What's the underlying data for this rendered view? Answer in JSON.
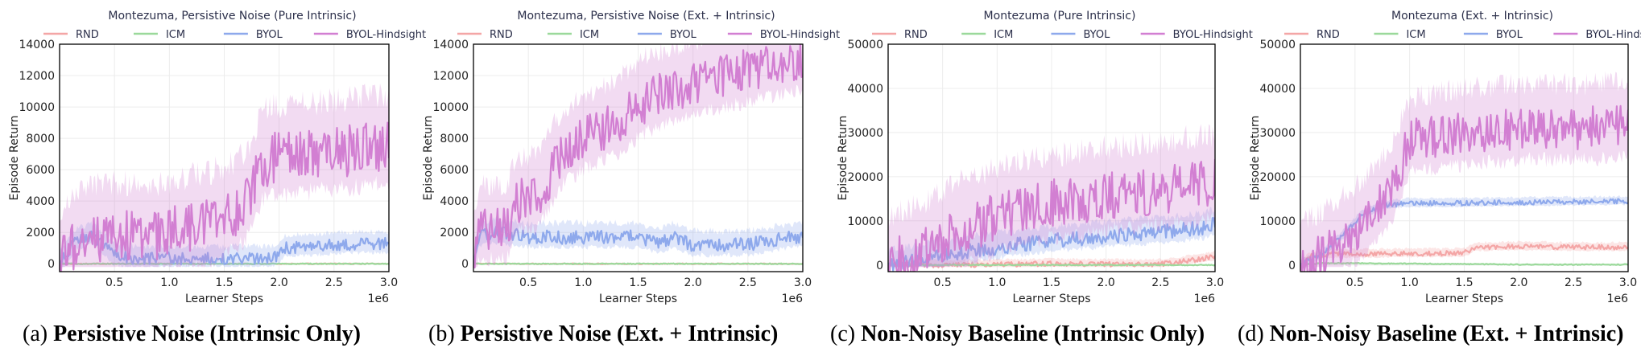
{
  "chart_data": [
    {
      "type": "line",
      "title": "Montezuma, Persistive Noise (Pure Intrinsic)",
      "xlabel": "Learner Steps",
      "ylabel": "Episode Return",
      "x_multiplier": "1e6",
      "xlim": [
        0,
        3.0
      ],
      "ylim": [
        -500,
        14000
      ],
      "x_ticks": [
        "0.5",
        "1.0",
        "1.5",
        "2.0",
        "2.5",
        "3.0"
      ],
      "y_ticks": [
        "0",
        "2000",
        "4000",
        "6000",
        "8000",
        "10000",
        "12000",
        "14000"
      ],
      "legend": "top",
      "grid": true,
      "caption_prefix": "(a)",
      "caption_bold": "Persistive Noise (Intrinsic Only)",
      "series": [
        {
          "name": "RND",
          "color": "#f4a6a6",
          "x": [
            0,
            0.5,
            1.0,
            1.5,
            2.0,
            2.5,
            3.0
          ],
          "values": [
            0,
            0,
            0,
            0,
            0,
            0,
            0
          ],
          "band": 0
        },
        {
          "name": "ICM",
          "color": "#9bd99b",
          "x": [
            0,
            0.5,
            1.0,
            1.5,
            2.0,
            2.5,
            3.0
          ],
          "values": [
            0,
            0,
            0,
            0,
            0,
            0,
            0
          ],
          "band": 0
        },
        {
          "name": "BYOL",
          "color": "#8ea9ec",
          "x": [
            0,
            0.15,
            0.3,
            0.5,
            0.7,
            1.0,
            1.5,
            1.95,
            2.05,
            2.5,
            3.0
          ],
          "values": [
            0,
            1500,
            1800,
            500,
            350,
            350,
            350,
            350,
            1000,
            1200,
            1300
          ],
          "band": 700
        },
        {
          "name": "BYOL-Hindsight",
          "color": "#d27fd2",
          "x": [
            0,
            0.15,
            0.3,
            0.5,
            0.7,
            1.0,
            1.3,
            1.6,
            1.75,
            1.85,
            2.0,
            2.3,
            2.6,
            3.0
          ],
          "values": [
            0,
            1500,
            1700,
            1800,
            1700,
            2000,
            2400,
            3200,
            4500,
            6500,
            6800,
            7000,
            7200,
            7500
          ],
          "band": 3000
        }
      ]
    },
    {
      "type": "line",
      "title": "Montezuma, Persistive Noise (Ext. + Intrinsic)",
      "xlabel": "Learner Steps",
      "ylabel": "Episode Return",
      "x_multiplier": "1e6",
      "xlim": [
        0,
        3.0
      ],
      "ylim": [
        -500,
        14000
      ],
      "x_ticks": [
        "0.5",
        "1.0",
        "1.5",
        "2.0",
        "2.5",
        "3.0"
      ],
      "y_ticks": [
        "0",
        "2000",
        "4000",
        "6000",
        "8000",
        "10000",
        "12000",
        "14000"
      ],
      "legend": "top",
      "grid": true,
      "caption_prefix": "(b)",
      "caption_bold": "Persistive Noise (Ext. + Intrinsic)",
      "series": [
        {
          "name": "RND",
          "color": "#f4a6a6",
          "x": [
            0,
            0.5,
            1.0,
            1.5,
            2.0,
            2.5,
            3.0
          ],
          "values": [
            0,
            0,
            0,
            0,
            0,
            0,
            0
          ],
          "band": 0
        },
        {
          "name": "ICM",
          "color": "#9bd99b",
          "x": [
            0,
            0.5,
            1.0,
            1.5,
            2.0,
            2.5,
            3.0
          ],
          "values": [
            0,
            0,
            0,
            0,
            0,
            0,
            0
          ],
          "band": 0
        },
        {
          "name": "BYOL",
          "color": "#8ea9ec",
          "x": [
            0,
            0.05,
            0.2,
            0.5,
            1.0,
            1.5,
            1.7,
            1.8,
            2.0,
            2.5,
            3.0
          ],
          "values": [
            0,
            1800,
            2000,
            1700,
            1700,
            1700,
            1300,
            1700,
            1200,
            1200,
            1800
          ],
          "band": 800
        },
        {
          "name": "BYOL-Hindsight",
          "color": "#d27fd2",
          "x": [
            0,
            0.05,
            0.3,
            0.4,
            0.6,
            0.8,
            1.0,
            1.3,
            1.6,
            2.0,
            2.3,
            2.6,
            3.0
          ],
          "values": [
            0,
            2300,
            2300,
            4000,
            4300,
            7000,
            8000,
            9000,
            10500,
            11500,
            12000,
            12500,
            13000
          ],
          "band": 2500
        }
      ]
    },
    {
      "type": "line",
      "title": "Montezuma (Pure Intrinsic)",
      "xlabel": "Learner Steps",
      "ylabel": "Episode Return",
      "x_multiplier": "1e6",
      "xlim": [
        0,
        3.0
      ],
      "ylim": [
        -1500,
        50000
      ],
      "x_ticks": [
        "0.5",
        "1.0",
        "1.5",
        "2.0",
        "2.5",
        "3.0"
      ],
      "y_ticks": [
        "0",
        "10000",
        "20000",
        "30000",
        "40000",
        "50000"
      ],
      "legend": "top",
      "grid": true,
      "caption_prefix": "(c)",
      "caption_bold": "Non-Noisy Baseline (Intrinsic Only)",
      "series": [
        {
          "name": "RND",
          "color": "#f4a6a6",
          "x": [
            0,
            0.5,
            1.0,
            1.5,
            2.0,
            2.5,
            2.9,
            3.0
          ],
          "values": [
            0,
            0,
            100,
            300,
            200,
            200,
            1500,
            2000
          ],
          "band": 1000
        },
        {
          "name": "ICM",
          "color": "#9bd99b",
          "x": [
            0,
            0.5,
            1.0,
            1.5,
            2.0,
            2.5,
            3.0
          ],
          "values": [
            0,
            0,
            0,
            0,
            0,
            0,
            0
          ],
          "band": 0
        },
        {
          "name": "BYOL",
          "color": "#8ea9ec",
          "x": [
            0,
            0.3,
            0.7,
            1.0,
            1.5,
            2.0,
            2.5,
            2.9,
            3.0
          ],
          "values": [
            0,
            1500,
            3000,
            4000,
            5500,
            6500,
            7500,
            8500,
            9500
          ],
          "band": 3000
        },
        {
          "name": "BYOL-Hindsight",
          "color": "#d27fd2",
          "x": [
            0,
            0.3,
            0.6,
            1.0,
            1.5,
            2.0,
            2.5,
            3.0
          ],
          "values": [
            0,
            3000,
            7000,
            11000,
            14000,
            15500,
            17000,
            18500
          ],
          "band": 10000
        }
      ]
    },
    {
      "type": "line",
      "title": "Montezuma (Ext. + Intrinsic)",
      "xlabel": "Learner Steps",
      "ylabel": "Episode Return",
      "x_multiplier": "1e6",
      "xlim": [
        0,
        3.0
      ],
      "ylim": [
        -1500,
        50000
      ],
      "x_ticks": [
        "0.5",
        "1.0",
        "1.5",
        "2.0",
        "2.5",
        "3.0"
      ],
      "y_ticks": [
        "0",
        "10000",
        "20000",
        "30000",
        "40000",
        "50000"
      ],
      "legend": "top",
      "grid": true,
      "caption_prefix": "(d)",
      "caption_bold": "Non-Noisy Baseline (Ext. + Intrinsic)",
      "series": [
        {
          "name": "RND",
          "color": "#f4a6a6",
          "x": [
            0,
            0.1,
            0.3,
            0.6,
            1.0,
            1.5,
            1.6,
            2.0,
            2.5,
            3.0
          ],
          "values": [
            0,
            2000,
            2500,
            2500,
            2600,
            2700,
            4000,
            4200,
            4000,
            4000
          ],
          "band": 1000
        },
        {
          "name": "ICM",
          "color": "#9bd99b",
          "x": [
            0,
            0.2,
            0.5,
            1.0,
            1.5,
            2.0,
            2.5,
            3.0
          ],
          "values": [
            0,
            400,
            400,
            300,
            200,
            100,
            100,
            100
          ],
          "band": 200
        },
        {
          "name": "BYOL",
          "color": "#8ea9ec",
          "x": [
            0,
            0.2,
            0.4,
            0.55,
            0.75,
            1.0,
            1.5,
            2.0,
            2.5,
            3.0
          ],
          "values": [
            0,
            2500,
            7000,
            11000,
            13500,
            14000,
            14000,
            14200,
            14300,
            14500
          ],
          "band": 1000
        },
        {
          "name": "BYOL-Hindsight",
          "color": "#d27fd2",
          "x": [
            0,
            0.2,
            0.4,
            0.6,
            0.75,
            0.85,
            1.0,
            1.5,
            2.0,
            2.5,
            3.0
          ],
          "values": [
            0,
            2000,
            6000,
            10000,
            14000,
            18000,
            28000,
            30000,
            31000,
            31000,
            31500
          ],
          "band": 9000
        }
      ]
    }
  ]
}
